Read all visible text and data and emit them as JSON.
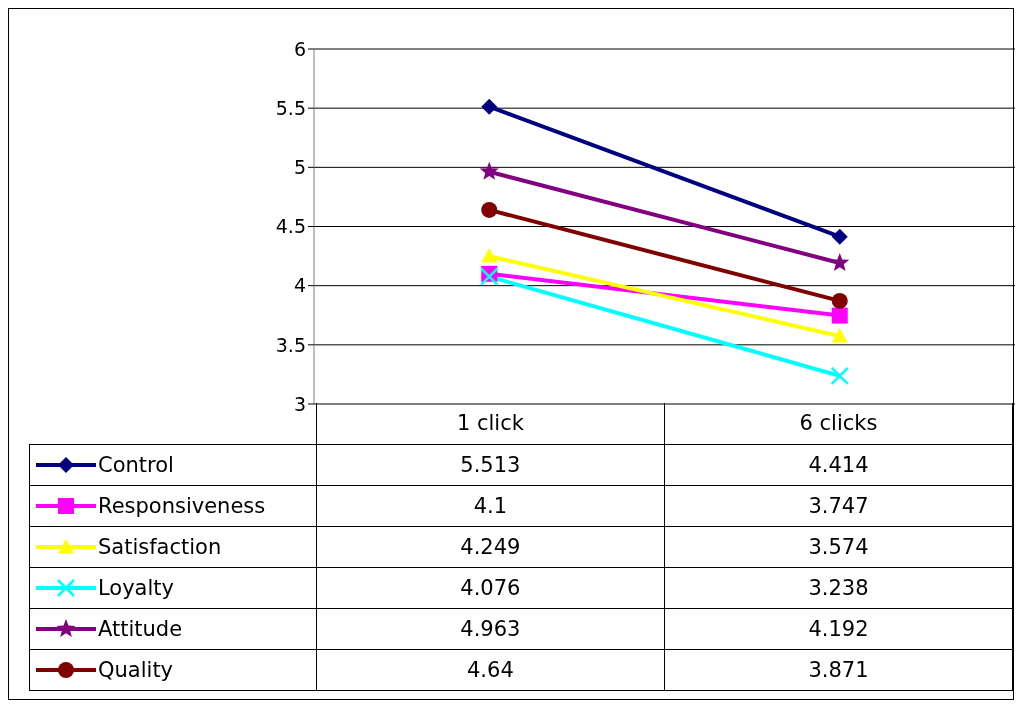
{
  "chart_data": {
    "type": "line",
    "categories": [
      "1 click",
      "6 clicks"
    ],
    "ylim": [
      3,
      6
    ],
    "yticks": [
      3,
      3.5,
      4,
      4.5,
      5,
      5.5,
      6
    ],
    "grid": "y",
    "legend": "bottom",
    "data_labels": true,
    "line_style": "solid",
    "series": [
      {
        "name": "Control",
        "color": "#000080",
        "marker": "diamond",
        "values": [
          5.513,
          4.414
        ]
      },
      {
        "name": "Responsiveness",
        "color": "#ff00ff",
        "marker": "square",
        "values": [
          4.1,
          3.747
        ]
      },
      {
        "name": "Satisfaction",
        "color": "#ffff00",
        "marker": "triangle",
        "values": [
          4.249,
          3.574
        ]
      },
      {
        "name": "Loyalty",
        "color": "#00ffff",
        "marker": "cross",
        "values": [
          4.076,
          3.238
        ]
      },
      {
        "name": "Attitude",
        "color": "#800080",
        "marker": "star",
        "values": [
          4.963,
          4.192
        ]
      },
      {
        "name": "Quality",
        "color": "#800000",
        "marker": "circle",
        "values": [
          4.64,
          3.871
        ]
      }
    ]
  }
}
